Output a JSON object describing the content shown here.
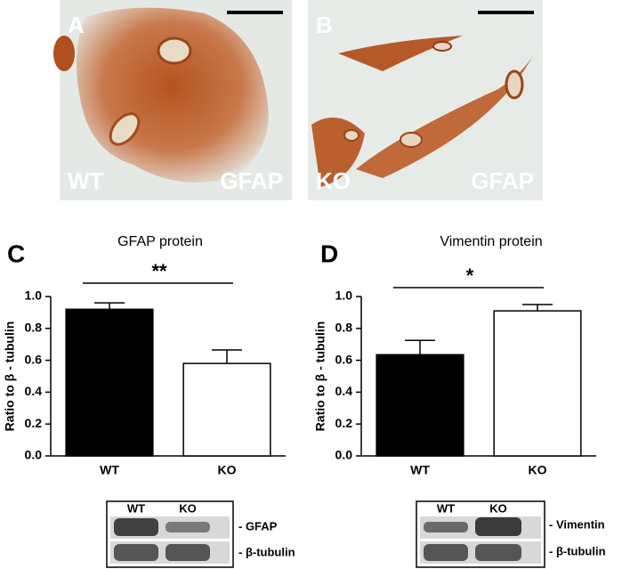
{
  "panels": [
    {
      "label": "A",
      "genotype": "WT",
      "stain": "GFAP"
    },
    {
      "label": "B",
      "genotype": "KO",
      "stain": "GFAP"
    }
  ],
  "chart_data": [
    {
      "type": "bar",
      "panel": "C",
      "title": "GFAP protein",
      "y_label": "Ratio to β - tubulin",
      "categories": [
        "WT",
        "KO"
      ],
      "values": [
        0.92,
        0.58
      ],
      "errors": [
        0.04,
        0.085
      ],
      "colors": [
        "#000000",
        "#ffffff"
      ],
      "significance": "**",
      "ylim": [
        0,
        1.0
      ],
      "yticks": [
        {
          "value": 0,
          "label": "0.0"
        },
        0.2,
        0.4,
        0.6,
        0.8,
        {
          "value": 1.0,
          "label": "1.0"
        }
      ]
    },
    {
      "type": "bar",
      "panel": "D",
      "title": "Vimentin protein",
      "y_label": "Ratio to β - tubulin",
      "categories": [
        "WT",
        "KO"
      ],
      "values": [
        0.635,
        0.91
      ],
      "errors": [
        0.09,
        0.04
      ],
      "colors": [
        "#000000",
        "#ffffff"
      ],
      "significance": "*",
      "ylim": [
        0,
        1.0
      ],
      "yticks": [
        {
          "value": 0,
          "label": "0.0"
        },
        0.2,
        0.4,
        0.6,
        0.8,
        {
          "value": 1.0,
          "label": "1.0"
        }
      ]
    }
  ],
  "blots": [
    {
      "lanes": [
        "WT",
        "KO"
      ],
      "bands": [
        "- GFAP",
        "- β-tubulin"
      ]
    },
    {
      "lanes": [
        "WT",
        "KO"
      ],
      "bands": [
        "- Vimentin",
        "- β-tubulin"
      ]
    }
  ]
}
